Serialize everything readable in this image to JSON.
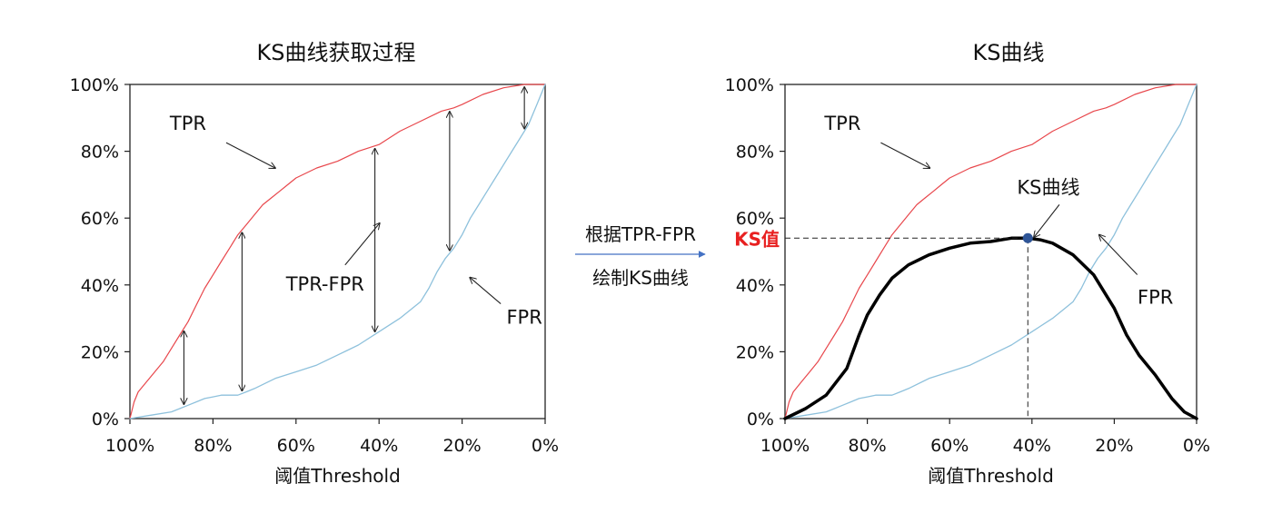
{
  "middle": {
    "line1": "根据TPR-FPR",
    "line2": "绘制KS曲线",
    "arrow_color": "#4472c4"
  },
  "colors": {
    "tpr": "#e8474c",
    "fpr": "#8ec1dc",
    "ks": "#000000",
    "ks_label": "#e82020",
    "ks_point": "#2f5597"
  },
  "chart_data": [
    {
      "type": "line",
      "title": "KS曲线获取过程",
      "xlabel": "阈值Threshold",
      "ylabel": "",
      "x_ticks": [
        "100%",
        "80%",
        "60%",
        "40%",
        "20%",
        "0%"
      ],
      "y_ticks": [
        "0%",
        "20%",
        "40%",
        "60%",
        "80%",
        "100%"
      ],
      "xlim": [
        100,
        0
      ],
      "ylim": [
        0,
        100
      ],
      "grid": false,
      "series": [
        {
          "name": "TPR",
          "x": [
            100,
            99,
            98,
            96,
            94,
            92,
            90,
            88,
            86,
            84,
            82,
            80,
            78,
            76,
            74,
            72,
            70,
            68,
            66,
            64,
            62,
            60,
            55,
            50,
            45,
            40,
            35,
            30,
            25,
            22,
            20,
            15,
            10,
            5,
            2,
            0
          ],
          "y": [
            0,
            5,
            8,
            11,
            14,
            17,
            21,
            25,
            29,
            34,
            39,
            43,
            47,
            51,
            55,
            58,
            61,
            64,
            66,
            68,
            70,
            72,
            75,
            77,
            80,
            82,
            86,
            89,
            92,
            93,
            94,
            97,
            99,
            100,
            100,
            100
          ]
        },
        {
          "name": "FPR",
          "x": [
            100,
            95,
            90,
            88,
            86,
            84,
            82,
            80,
            78,
            76,
            74,
            72,
            70,
            65,
            60,
            55,
            50,
            45,
            40,
            35,
            30,
            28,
            26,
            24,
            22,
            20,
            18,
            16,
            14,
            12,
            10,
            8,
            6,
            4,
            2,
            0
          ],
          "y": [
            0,
            1,
            2,
            3,
            4,
            5,
            6,
            6.5,
            7,
            7,
            7,
            8,
            9,
            12,
            14,
            16,
            19,
            22,
            26,
            30,
            35,
            39,
            44,
            48,
            51,
            55,
            60,
            64,
            68,
            72,
            76,
            80,
            84,
            88,
            94,
            100
          ]
        }
      ],
      "annotations": [
        {
          "text": "TPR",
          "x": 86,
          "y": 88
        },
        {
          "text": "TPR-FPR",
          "x": 53,
          "y": 40
        },
        {
          "text": "FPR",
          "x": 5,
          "y": 30
        }
      ],
      "difference_arrows_x": [
        87,
        73,
        41,
        23,
        5
      ]
    },
    {
      "type": "line",
      "title": "KS曲线",
      "xlabel": "阈值Threshold",
      "ylabel": "",
      "x_ticks": [
        "100%",
        "80%",
        "60%",
        "40%",
        "20%",
        "0%"
      ],
      "y_ticks": [
        "0%",
        "20%",
        "40%",
        "60%",
        "80%",
        "100%"
      ],
      "xlim": [
        100,
        0
      ],
      "ylim": [
        0,
        100
      ],
      "grid": false,
      "series": [
        {
          "name": "TPR",
          "x": [
            100,
            99,
            98,
            96,
            94,
            92,
            90,
            88,
            86,
            84,
            82,
            80,
            78,
            76,
            74,
            72,
            70,
            68,
            66,
            64,
            62,
            60,
            55,
            50,
            45,
            40,
            35,
            30,
            25,
            22,
            20,
            15,
            10,
            5,
            2,
            0
          ],
          "y": [
            0,
            5,
            8,
            11,
            14,
            17,
            21,
            25,
            29,
            34,
            39,
            43,
            47,
            51,
            55,
            58,
            61,
            64,
            66,
            68,
            70,
            72,
            75,
            77,
            80,
            82,
            86,
            89,
            92,
            93,
            94,
            97,
            99,
            100,
            100,
            100
          ]
        },
        {
          "name": "FPR",
          "x": [
            100,
            95,
            90,
            88,
            86,
            84,
            82,
            80,
            78,
            76,
            74,
            72,
            70,
            65,
            60,
            55,
            50,
            45,
            40,
            35,
            30,
            28,
            26,
            24,
            22,
            20,
            18,
            16,
            14,
            12,
            10,
            8,
            6,
            4,
            2,
            0
          ],
          "y": [
            0,
            1,
            2,
            3,
            4,
            5,
            6,
            6.5,
            7,
            7,
            7,
            8,
            9,
            12,
            14,
            16,
            19,
            22,
            26,
            30,
            35,
            39,
            44,
            48,
            51,
            55,
            60,
            64,
            68,
            72,
            76,
            80,
            84,
            88,
            94,
            100
          ]
        },
        {
          "name": "KS曲线",
          "x": [
            100,
            95,
            90,
            85,
            82,
            80,
            77,
            74,
            70,
            65,
            60,
            55,
            50,
            45,
            41,
            38,
            35,
            30,
            25,
            20,
            17,
            14,
            10,
            6,
            3,
            0
          ],
          "y": [
            0,
            3,
            7,
            15,
            25,
            31,
            37,
            42,
            46,
            49,
            51,
            52.5,
            53,
            54,
            54,
            53.5,
            52.5,
            49,
            43,
            33,
            25,
            19,
            13,
            6,
            2,
            0
          ]
        }
      ],
      "ks_point": {
        "x": 41,
        "y": 54,
        "label": "KS值"
      },
      "annotations": [
        {
          "text": "TPR",
          "x": 86,
          "y": 88
        },
        {
          "text": "KS曲线",
          "x": 36,
          "y": 70
        },
        {
          "text": "FPR",
          "x": 10,
          "y": 36
        }
      ]
    }
  ]
}
